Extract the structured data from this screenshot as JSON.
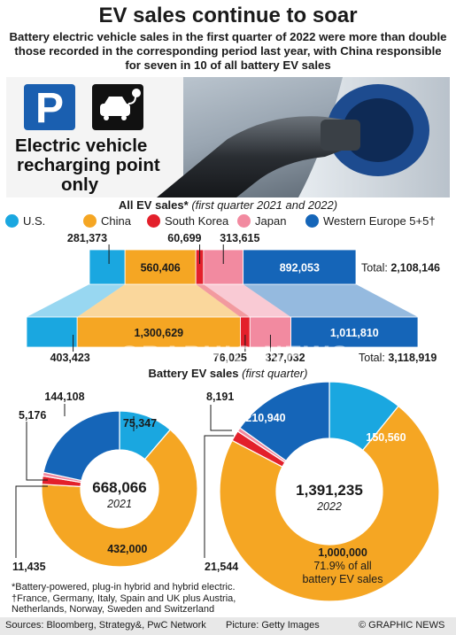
{
  "title": "EV sales continue to soar",
  "subtitle": "Battery electric vehicle sales in the first quarter of 2022 were more than double those recorded in the corresponding period last year, with China responsible for seven in 10 of all battery EV sales",
  "photo": {
    "sign_text_line1": "Electric vehicle",
    "sign_text_line2": "recharging point",
    "sign_text_line3": "only",
    "parking_letter": "P"
  },
  "colors": {
    "us": "#1aa7e0",
    "china": "#f5a623",
    "south_korea": "#e3202b",
    "japan": "#f28aa0",
    "western_europe": "#1565b8"
  },
  "section_all": {
    "heading_bold": "All EV sales*",
    "heading_italic": "(first quarter 2021 and 2022)"
  },
  "legend": [
    {
      "label": "U.S.",
      "color": "#1aa7e0"
    },
    {
      "label": "China",
      "color": "#f5a623"
    },
    {
      "label": "South Korea",
      "color": "#e3202b"
    },
    {
      "label": "Japan",
      "color": "#f28aa0"
    },
    {
      "label": "Western Europe 5+5†",
      "color": "#1565b8"
    }
  ],
  "section_bev": {
    "heading_bold": "Battery EV sales",
    "heading_italic": "(first quarter)"
  },
  "chart_data": [
    {
      "type": "bar",
      "orientation": "horizontal-stacked",
      "title": "All EV sales* (first quarter 2021 and 2022)",
      "categories": [
        "2021",
        "2022"
      ],
      "series": [
        {
          "name": "U.S.",
          "values": [
            281373,
            403423
          ]
        },
        {
          "name": "China",
          "values": [
            560406,
            1300629
          ]
        },
        {
          "name": "South Korea",
          "values": [
            60699,
            76025
          ]
        },
        {
          "name": "Japan",
          "values": [
            313615,
            327032
          ]
        },
        {
          "name": "Western Europe 5+5†",
          "values": [
            892053,
            1011810
          ]
        }
      ],
      "value_labels": [
        [
          "281,373",
          "560,406",
          "60,699",
          "313,615",
          "892,053"
        ],
        [
          "403,423",
          "1,300,629",
          "76,025",
          "327,032",
          "1,011,810"
        ]
      ],
      "totals": [
        2108146,
        3118919
      ],
      "total_label_text": "Total:",
      "total_labels": [
        "2,108,146",
        "3,118,919"
      ]
    },
    {
      "type": "pie",
      "style": "donut",
      "title": "Battery EV sales (first quarter)",
      "center_total": "668,066",
      "center_year": "2021",
      "slices": [
        {
          "name": "U.S.",
          "value": 75347,
          "label": "75,347"
        },
        {
          "name": "China",
          "value": 432000,
          "label": "432,000"
        },
        {
          "name": "South Korea",
          "value": 11435,
          "label": "11,435"
        },
        {
          "name": "Japan",
          "value": 5176,
          "label": "5,176"
        },
        {
          "name": "Western Europe 5+5†",
          "value": 144108,
          "label": "144,108"
        }
      ]
    },
    {
      "type": "pie",
      "style": "donut",
      "title": "Battery EV sales (first quarter)",
      "center_total": "1,391,235",
      "center_year": "2022",
      "slices": [
        {
          "name": "U.S.",
          "value": 150560,
          "label": "150,560"
        },
        {
          "name": "China",
          "value": 1000000,
          "label": "1,000,000",
          "note1": "71.9% of all",
          "note2": "battery EV sales"
        },
        {
          "name": "South Korea",
          "value": 21544,
          "label": "21,544"
        },
        {
          "name": "Japan",
          "value": 8191,
          "label": "8,191"
        },
        {
          "name": "Western Europe 5+5†",
          "value": 210940,
          "label": "210,940"
        }
      ]
    }
  ],
  "footnote": {
    "line1": "*Battery-powered, plug-in hybrid and hybrid electric.",
    "line2": "†France, Germany, Italy, Spain and UK plus Austria,",
    "line3": "Netherlands, Norway, Sweden and Switzerland"
  },
  "footer": {
    "sources": "Sources: Bloomberg, Strategy&, PwC Network",
    "picture": "Picture: Getty Images",
    "credit": "© GRAPHIC NEWS"
  },
  "watermark": "GRAPHIC NEWS"
}
